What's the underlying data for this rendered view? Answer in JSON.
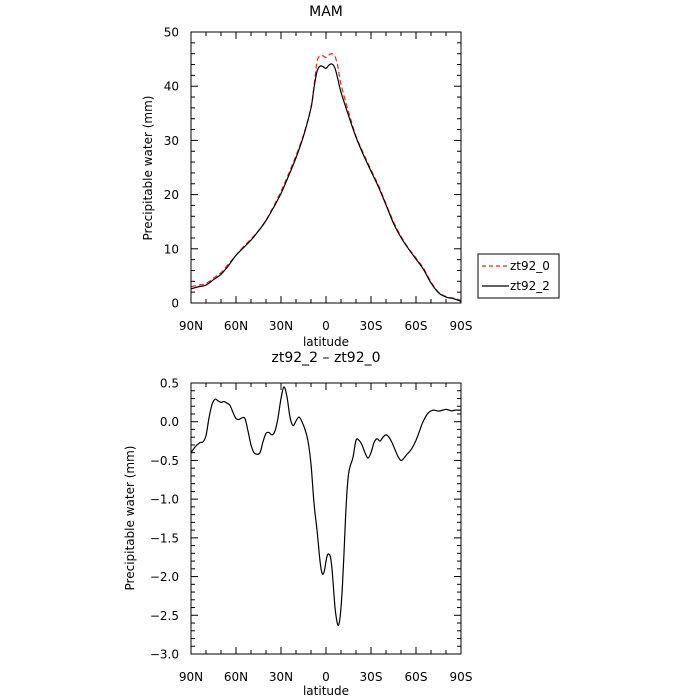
{
  "chart_data": [
    {
      "type": "line",
      "title": "MAM",
      "xlabel": "latitude",
      "ylabel": "Precipitable water (mm)",
      "xlim": [
        90,
        -90
      ],
      "ylim": [
        0,
        50
      ],
      "x_ticks": [
        90,
        60,
        30,
        0,
        -30,
        -60,
        -90
      ],
      "x_tick_labels": [
        "90N",
        "60N",
        "30N",
        "0",
        "30S",
        "60S",
        "90S"
      ],
      "y_ticks": [
        0,
        10,
        20,
        30,
        40,
        50
      ],
      "y_tick_labels": [
        "0",
        "10",
        "20",
        "30",
        "40",
        "50"
      ],
      "x": [
        90,
        85,
        80,
        75,
        70,
        65,
        60,
        55,
        50,
        45,
        40,
        35,
        30,
        25,
        20,
        15,
        10,
        8,
        6,
        4,
        2,
        0,
        -2,
        -4,
        -6,
        -8,
        -10,
        -15,
        -20,
        -25,
        -30,
        -35,
        -40,
        -45,
        -50,
        -55,
        -60,
        -65,
        -70,
        -75,
        -80,
        -85,
        -90
      ],
      "series": [
        {
          "name": "zt92_0",
          "color": "#e8281e",
          "dash": "dashed",
          "values": [
            3.0,
            3.3,
            3.6,
            4.6,
            5.6,
            7.2,
            8.8,
            10.4,
            11.8,
            13.3,
            15.3,
            17.8,
            20.6,
            23.8,
            27.2,
            31.0,
            36.0,
            40.0,
            44.5,
            45.6,
            45.6,
            45.3,
            45.8,
            46.0,
            45.5,
            43.5,
            40.3,
            35.3,
            30.8,
            27.6,
            24.6,
            21.7,
            18.3,
            15.0,
            12.3,
            10.1,
            8.3,
            6.4,
            3.9,
            2.0,
            1.2,
            0.9,
            0.5
          ]
        },
        {
          "name": "zt92_2",
          "color": "#000000",
          "dash": "solid",
          "values": [
            2.6,
            3.0,
            3.3,
            4.3,
            5.3,
            6.9,
            8.8,
            10.2,
            11.6,
            13.3,
            15.2,
            17.6,
            20.2,
            23.4,
            26.8,
            30.8,
            36.0,
            39.7,
            42.7,
            43.7,
            43.6,
            43.3,
            43.9,
            44.1,
            43.3,
            41.2,
            38.9,
            34.6,
            30.6,
            27.3,
            24.3,
            21.4,
            18.1,
            14.7,
            12.1,
            10.0,
            8.1,
            6.2,
            3.7,
            1.9,
            1.1,
            0.8,
            0.3
          ]
        }
      ],
      "legend": {
        "placement": "right",
        "entries": [
          "zt92_0",
          "zt92_2"
        ]
      }
    },
    {
      "type": "line",
      "title": "zt92_2 – zt92_0",
      "xlabel": "latitude",
      "ylabel": "Precipitable water (mm)",
      "xlim": [
        90,
        -90
      ],
      "ylim": [
        -3.0,
        0.5
      ],
      "x_ticks": [
        90,
        60,
        30,
        0,
        -30,
        -60,
        -90
      ],
      "x_tick_labels": [
        "90N",
        "60N",
        "30N",
        "0",
        "30S",
        "60S",
        "90S"
      ],
      "y_ticks": [
        0.5,
        0.0,
        -0.5,
        -1.0,
        -1.5,
        -2.0,
        -2.5,
        -3.0
      ],
      "y_tick_labels": [
        "0.5",
        "0.0",
        "−0.5",
        "−1.0",
        "−1.5",
        "−2.0",
        "−2.5",
        "−3.0"
      ],
      "x": [
        90,
        87,
        84,
        82,
        80,
        78,
        76,
        74,
        72,
        70,
        68,
        66,
        64,
        62,
        60,
        58,
        56,
        54,
        52,
        50,
        48,
        46,
        44,
        42,
        40,
        38,
        36,
        34,
        32,
        30,
        28,
        26,
        24,
        22,
        20,
        18,
        16,
        14,
        12,
        10,
        8,
        6,
        5,
        4,
        3,
        2,
        1,
        0,
        -1,
        -2,
        -3,
        -4,
        -5,
        -6,
        -7,
        -8,
        -9,
        -10,
        -11,
        -12,
        -13,
        -14,
        -15,
        -16,
        -18,
        -20,
        -22,
        -24,
        -26,
        -28,
        -30,
        -32,
        -34,
        -36,
        -38,
        -40,
        -42,
        -44,
        -46,
        -48,
        -50,
        -52,
        -54,
        -56,
        -58,
        -60,
        -62,
        -64,
        -66,
        -68,
        -70,
        -72,
        -74,
        -76,
        -78,
        -80,
        -82,
        -84,
        -86,
        -88,
        -90
      ],
      "series": [
        {
          "name": "zt92_2 – zt92_0",
          "color": "#000000",
          "dash": "solid",
          "values": [
            -0.4,
            -0.32,
            -0.27,
            -0.26,
            -0.18,
            0.05,
            0.22,
            0.29,
            0.27,
            0.25,
            0.26,
            0.24,
            0.21,
            0.12,
            0.04,
            0.03,
            0.05,
            0.04,
            -0.12,
            -0.3,
            -0.4,
            -0.42,
            -0.4,
            -0.26,
            -0.15,
            -0.14,
            -0.17,
            -0.12,
            0.05,
            0.3,
            0.45,
            0.32,
            0.06,
            -0.05,
            0.01,
            0.06,
            0.0,
            -0.1,
            -0.25,
            -0.55,
            -1.05,
            -1.4,
            -1.6,
            -1.8,
            -1.93,
            -1.97,
            -1.92,
            -1.8,
            -1.72,
            -1.71,
            -1.75,
            -1.9,
            -2.15,
            -2.4,
            -2.55,
            -2.63,
            -2.58,
            -2.4,
            -2.1,
            -1.7,
            -1.25,
            -0.9,
            -0.68,
            -0.58,
            -0.46,
            -0.24,
            -0.24,
            -0.3,
            -0.4,
            -0.47,
            -0.4,
            -0.27,
            -0.22,
            -0.25,
            -0.2,
            -0.17,
            -0.2,
            -0.27,
            -0.36,
            -0.45,
            -0.5,
            -0.47,
            -0.42,
            -0.38,
            -0.32,
            -0.24,
            -0.14,
            -0.03,
            0.05,
            0.11,
            0.14,
            0.15,
            0.14,
            0.14,
            0.15,
            0.16,
            0.15,
            0.14,
            0.15,
            0.15,
            0.15
          ]
        }
      ]
    }
  ]
}
